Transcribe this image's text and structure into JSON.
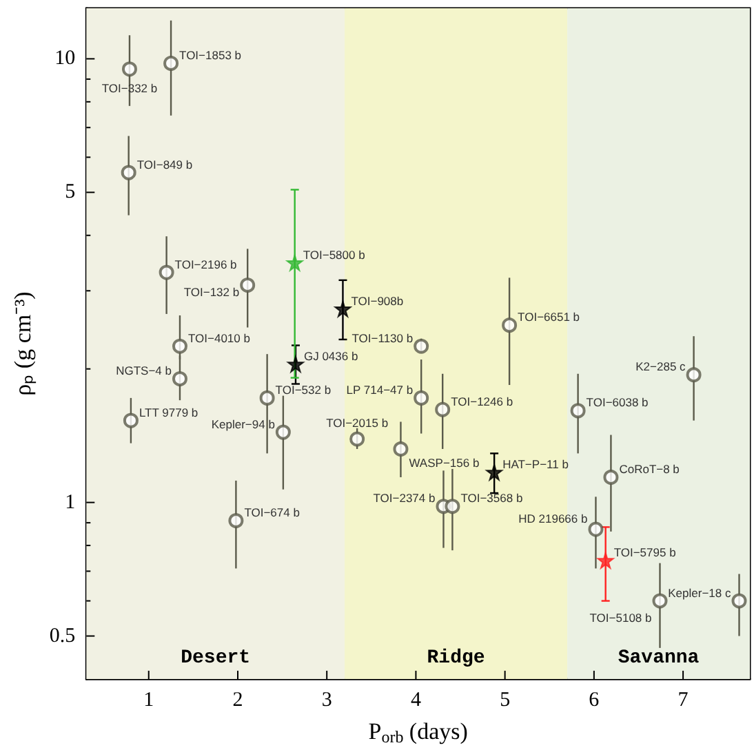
{
  "chart_data": {
    "type": "scatter",
    "xlabel": "P$_{orb}$ (days)",
    "ylabel": "ρₚ (g cm⁻³)",
    "log": "y",
    "xlim": [
      0.3,
      7.75
    ],
    "ylim": [
      0.4,
      13
    ],
    "xticks": [
      1,
      2,
      3,
      4,
      5,
      6,
      7
    ],
    "yticks": [
      0.5,
      {
        "value": 0.6,
        "label": null
      },
      {
        "value": 0.7,
        "label": null
      },
      {
        "value": 0.8,
        "label": null
      },
      {
        "value": 0.9,
        "label": null
      },
      1,
      {
        "value": 2,
        "label": null
      },
      {
        "value": 3,
        "label": null
      },
      {
        "value": 4,
        "label": null
      },
      5,
      {
        "value": 6,
        "label": null
      },
      {
        "value": 7,
        "label": null
      },
      {
        "value": 8,
        "label": null
      },
      {
        "value": 9,
        "label": null
      },
      10
    ],
    "bands": [
      {
        "axis": "x",
        "from": 0.3,
        "to": 3.2,
        "label": "Desert",
        "color": "#f1f1e3"
      },
      {
        "axis": "x",
        "from": 3.2,
        "to": 5.7,
        "label": "Ridge",
        "color": "#f4f5cb"
      },
      {
        "axis": "x",
        "from": 5.7,
        "to": 7.75,
        "label": "Savanna",
        "color": "#ebf1e3"
      }
    ],
    "series": [
      {
        "marker": "circle",
        "color": "#5b5b4b",
        "x": [
          0.785,
          1.25,
          0.775,
          1.2,
          2.11,
          1.35,
          1.35,
          0.8,
          2.33,
          2.51,
          1.98,
          3.34,
          4.06,
          4.06,
          4.3,
          3.83,
          4.31,
          4.41,
          5.05,
          5.82,
          7.12,
          6.19,
          6.02,
          6.74,
          7.63
        ],
        "values": [
          9.48,
          9.77,
          5.54,
          3.3,
          3.09,
          2.25,
          1.9,
          1.53,
          1.72,
          1.44,
          0.91,
          1.39,
          2.25,
          1.72,
          1.62,
          1.32,
          0.98,
          0.98,
          2.51,
          1.61,
          1.94,
          1.14,
          0.87,
          0.6,
          0.6
        ],
        "errors": [
          [
            7.83,
            11.3
          ],
          [
            7.45,
            12.2
          ],
          [
            4.44,
            6.7
          ],
          [
            2.66,
            3.98
          ],
          [
            2.48,
            3.73
          ],
          [
            2.1,
            2.64
          ],
          [
            1.7,
            2.14
          ],
          [
            1.36,
            1.72
          ],
          [
            1.29,
            2.16
          ],
          [
            1.07,
            1.74
          ],
          [
            0.71,
            1.12
          ],
          [
            1.32,
            1.47
          ],
          [
            2.18,
            2.34
          ],
          [
            1.43,
            2.1
          ],
          [
            1.32,
            1.95
          ],
          [
            1.14,
            1.52
          ],
          [
            0.79,
            1.18
          ],
          [
            0.78,
            1.19
          ],
          [
            1.84,
            3.21
          ],
          [
            1.29,
            1.95
          ],
          [
            1.53,
            2.37
          ],
          [
            0.86,
            1.42
          ],
          [
            0.71,
            1.03
          ],
          [
            0.47,
            0.73
          ],
          [
            0.5,
            0.69
          ]
        ]
      },
      {
        "marker": "star",
        "color": "#000000",
        "x": [
          3.18,
          2.65,
          4.88
        ],
        "values": [
          2.73,
          2.05,
          1.17
        ],
        "errors": [
          [
            2.33,
            3.17
          ],
          [
            1.85,
            2.26
          ],
          [
            1.05,
            1.29
          ]
        ]
      },
      {
        "marker": "star",
        "color": "#33b833",
        "x": [
          2.64
        ],
        "values": [
          3.47
        ],
        "errors": [
          [
            1.91,
            5.07
          ]
        ]
      },
      {
        "marker": "star",
        "color": "#ff2222",
        "x": [
          6.13
        ],
        "values": [
          0.74
        ],
        "errors": [
          [
            0.6,
            0.88
          ]
        ]
      }
    ],
    "annotations": [
      {
        "text": "TOI−332 b",
        "x": 0.785,
        "y": 9.48
      },
      {
        "text": "TOI−1853 b",
        "x": 1.25,
        "y": 9.77
      },
      {
        "text": "TOI−849 b",
        "x": 0.775,
        "y": 5.54
      },
      {
        "text": "TOI−2196 b",
        "x": 1.2,
        "y": 3.3
      },
      {
        "text": "TOI−132 b",
        "x": 2.11,
        "y": 3.09
      },
      {
        "text": "TOI−5800 b",
        "x": 2.64,
        "y": 3.47
      },
      {
        "text": "TOI−908b",
        "x": 3.18,
        "y": 2.73
      },
      {
        "text": "GJ 0436 b",
        "x": 2.65,
        "y": 2.05
      },
      {
        "text": "TOI−4010 b",
        "x": 1.35,
        "y": 2.25
      },
      {
        "text": "NGTS−4 b",
        "x": 1.35,
        "y": 1.9
      },
      {
        "text": "LTT 9779 b",
        "x": 0.8,
        "y": 1.53
      },
      {
        "text": "TOI−532 b",
        "x": 2.33,
        "y": 1.72
      },
      {
        "text": "Kepler−94 b",
        "x": 2.51,
        "y": 1.44
      },
      {
        "text": "TOI−674 b",
        "x": 1.98,
        "y": 0.91
      },
      {
        "text": "TOI−2015 b",
        "x": 3.34,
        "y": 1.39
      },
      {
        "text": "TOI−1130 b",
        "x": 4.06,
        "y": 2.25
      },
      {
        "text": "LP 714−47 b",
        "x": 4.06,
        "y": 1.72
      },
      {
        "text": "TOI−1246 b",
        "x": 4.3,
        "y": 1.62
      },
      {
        "text": "WASP−156 b",
        "x": 3.83,
        "y": 1.32
      },
      {
        "text": "TOI−2374 b",
        "x": 4.31,
        "y": 0.98
      },
      {
        "text": "TOI−3568 b",
        "x": 4.41,
        "y": 0.98
      },
      {
        "text": "HAT−P−11 b",
        "x": 4.88,
        "y": 1.17
      },
      {
        "text": "TOI−6651 b",
        "x": 5.05,
        "y": 2.51
      },
      {
        "text": "TOI−6038 b",
        "x": 5.82,
        "y": 1.61
      },
      {
        "text": "K2−285 c",
        "x": 7.12,
        "y": 1.94
      },
      {
        "text": "CoRoT−8 b",
        "x": 6.19,
        "y": 1.14
      },
      {
        "text": "HD 219666 b",
        "x": 6.02,
        "y": 0.87
      },
      {
        "text": "TOI−5795 b",
        "x": 6.13,
        "y": 0.74
      },
      {
        "text": "TOI−5108 b",
        "x": 6.74,
        "y": 0.6
      },
      {
        "text": "Kepler−18 c",
        "x": 7.63,
        "y": 0.6
      }
    ]
  }
}
